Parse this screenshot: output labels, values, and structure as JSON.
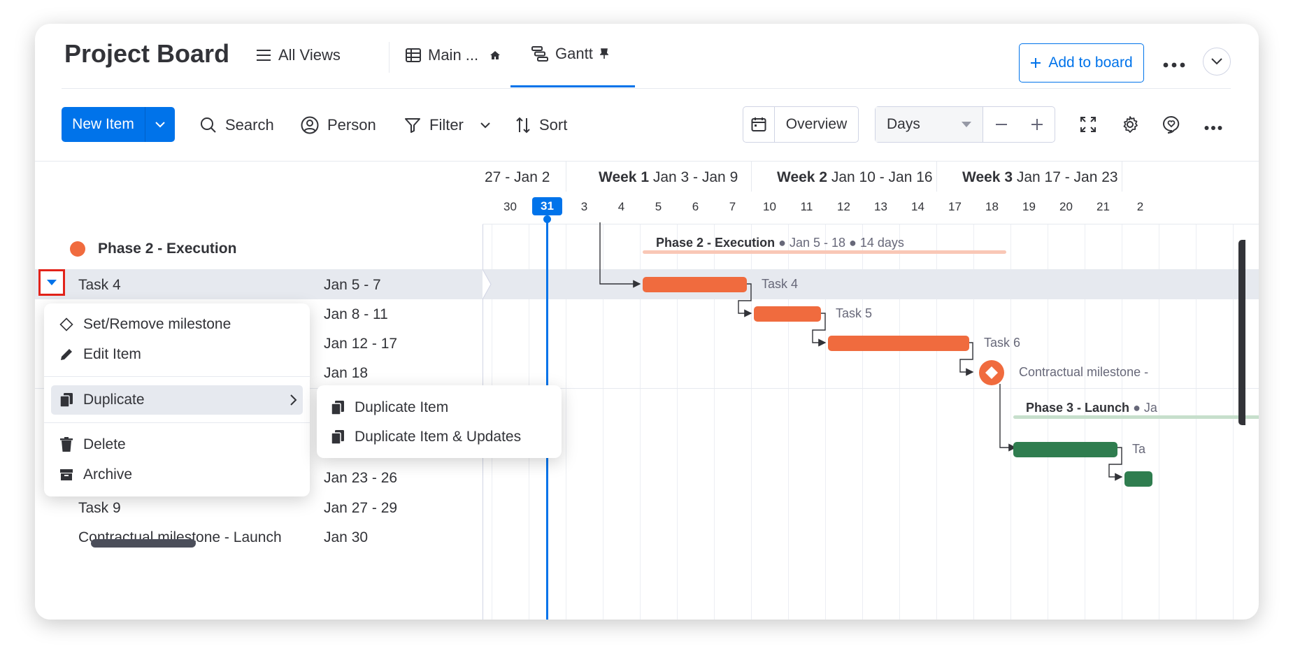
{
  "header": {
    "title": "Project Board",
    "all_views_label": "All Views",
    "main_tab_label": "Main ...",
    "gantt_tab_label": "Gantt",
    "add_to_board_label": "Add to board"
  },
  "toolbar": {
    "new_item_label": "New Item",
    "search_label": "Search",
    "person_label": "Person",
    "filter_label": "Filter",
    "sort_label": "Sort",
    "overview_label": "Overview",
    "scale_select_value": "Days"
  },
  "timeline": {
    "weeks": [
      {
        "bold": "",
        "range": "27 - Jan 2"
      },
      {
        "bold": "Week 1",
        "range": "Jan 3 - Jan 9"
      },
      {
        "bold": "Week 2",
        "range": "Jan 10 - Jan 16"
      },
      {
        "bold": "Week 3",
        "range": "Jan 17 - Jan 23"
      }
    ],
    "days": [
      "30",
      "31",
      "3",
      "4",
      "5",
      "6",
      "7",
      "10",
      "11",
      "12",
      "13",
      "14",
      "17",
      "18",
      "19",
      "20",
      "21",
      "2"
    ],
    "today": "31"
  },
  "group": {
    "name": "Phase 2 - Execution",
    "color": "#f06b3e",
    "summary_bold": "Phase 2 - Execution",
    "summary_rest": "● Jan 5 - 18 ● 14 days"
  },
  "rows": [
    {
      "name": "Task 4",
      "dates": "Jan 5 - 7"
    },
    {
      "name": "",
      "dates": "Jan 8 - 11"
    },
    {
      "name": "",
      "dates": "Jan 12 - 17"
    },
    {
      "name": "",
      "dates": "Jan 18"
    },
    {
      "name": "",
      "dates": "Jan 23 - 26"
    },
    {
      "name": "Task 9",
      "dates": "Jan 27 - 29"
    },
    {
      "name": "Contractual milestone - Launch",
      "dates": "Jan 30"
    }
  ],
  "gantt": {
    "task4_label": "Task 4",
    "task5_label": "Task 5",
    "task6_label": "Task 6",
    "milestone_label": "Contractual milestone -",
    "phase3_bold": "Phase 3 - Launch",
    "phase3_rest": "● Ja",
    "task7_label": "Ta",
    "phase2_color": "#f06b3e",
    "phase3_color": "#2f7d4f"
  },
  "context_menu": {
    "set_milestone": "Set/Remove milestone",
    "edit_item": "Edit Item",
    "duplicate": "Duplicate",
    "delete": "Delete",
    "archive": "Archive"
  },
  "submenu": {
    "duplicate_item": "Duplicate Item",
    "duplicate_item_updates": "Duplicate Item & Updates"
  }
}
